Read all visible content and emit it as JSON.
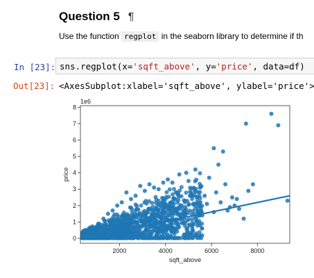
{
  "markdown": {
    "title": "Question 5",
    "pilcrow": "¶",
    "desc_before": "Use the function",
    "desc_code": "regplot",
    "desc_after": "in the seaborn library to determine if th"
  },
  "cell": {
    "in_prompt": "In [23]:",
    "code": {
      "p1": "sns.regplot(x=",
      "s1": "'sqft_above'",
      "p2": ", y=",
      "s2": "'price'",
      "p3": ", data=df)"
    },
    "out_prompt": "Out[23]:",
    "output_text": "<AxesSubplot:xlabel='sqft_above', ylabel='price'>"
  },
  "chart_data": {
    "type": "scatter",
    "xlabel": "sqft_above",
    "ylabel": "price",
    "y_scale_note": "1e6",
    "xlim": [
      300,
      9400
    ],
    "ylim": [
      -0.3,
      8.1
    ],
    "x_ticks": [
      2000,
      4000,
      6000,
      8000
    ],
    "y_ticks": [
      0,
      1,
      2,
      3,
      4,
      5,
      6,
      7,
      8
    ],
    "regression_line": {
      "x": [
        300,
        9400
      ],
      "y": [
        -0.05,
        2.6
      ]
    },
    "series": [
      {
        "color": "#1f77b4",
        "points": [
          [
            5300,
            4.2
          ],
          [
            5500,
            3.1
          ],
          [
            5900,
            3.7
          ],
          [
            6100,
            5.5
          ],
          [
            6300,
            4.5
          ],
          [
            6500,
            5.3
          ],
          [
            6600,
            3.3
          ],
          [
            7000,
            2.0
          ],
          [
            7200,
            1.8
          ],
          [
            7500,
            7.0
          ],
          [
            7600,
            2.9
          ],
          [
            7800,
            3.3
          ],
          [
            8600,
            7.6
          ],
          [
            8900,
            6.9
          ],
          [
            9300,
            2.3
          ],
          [
            7400,
            1.2
          ],
          [
            6700,
            1.7
          ],
          [
            6400,
            2.2
          ],
          [
            6100,
            1.6
          ],
          [
            5800,
            2.1
          ],
          [
            5000,
            3.5
          ],
          [
            4900,
            4.0
          ],
          [
            4600,
            3.9
          ],
          [
            4500,
            2.8
          ],
          [
            4300,
            3.4
          ],
          [
            4100,
            3.6
          ],
          [
            3900,
            3.4
          ],
          [
            3700,
            3.0
          ],
          [
            3500,
            3.1
          ],
          [
            3300,
            3.3
          ],
          [
            3100,
            2.9
          ],
          [
            2900,
            3.2
          ],
          [
            2700,
            2.6
          ],
          [
            2500,
            2.4
          ],
          [
            2300,
            2.8
          ],
          [
            2100,
            2.2
          ],
          [
            1900,
            2.0
          ],
          [
            1700,
            1.7
          ],
          [
            1500,
            1.5
          ],
          [
            1300,
            1.2
          ],
          [
            1100,
            0.9
          ],
          [
            900,
            0.6
          ],
          [
            700,
            0.4
          ],
          [
            5100,
            2.6
          ],
          [
            5400,
            1.9
          ],
          [
            5600,
            1.4
          ],
          [
            4800,
            1.2
          ],
          [
            4400,
            1.8
          ],
          [
            4000,
            2.4
          ],
          [
            3600,
            1.9
          ],
          [
            6900,
            2.5
          ],
          [
            7100,
            2.4
          ],
          [
            6800,
            1.9
          ],
          [
            6200,
            2.8
          ],
          [
            5700,
            2.6
          ],
          [
            3000,
            1.0
          ],
          [
            2600,
            1.4
          ],
          [
            2000,
            1.1
          ],
          [
            1600,
            0.8
          ],
          [
            4200,
            1.1
          ]
        ]
      }
    ]
  }
}
